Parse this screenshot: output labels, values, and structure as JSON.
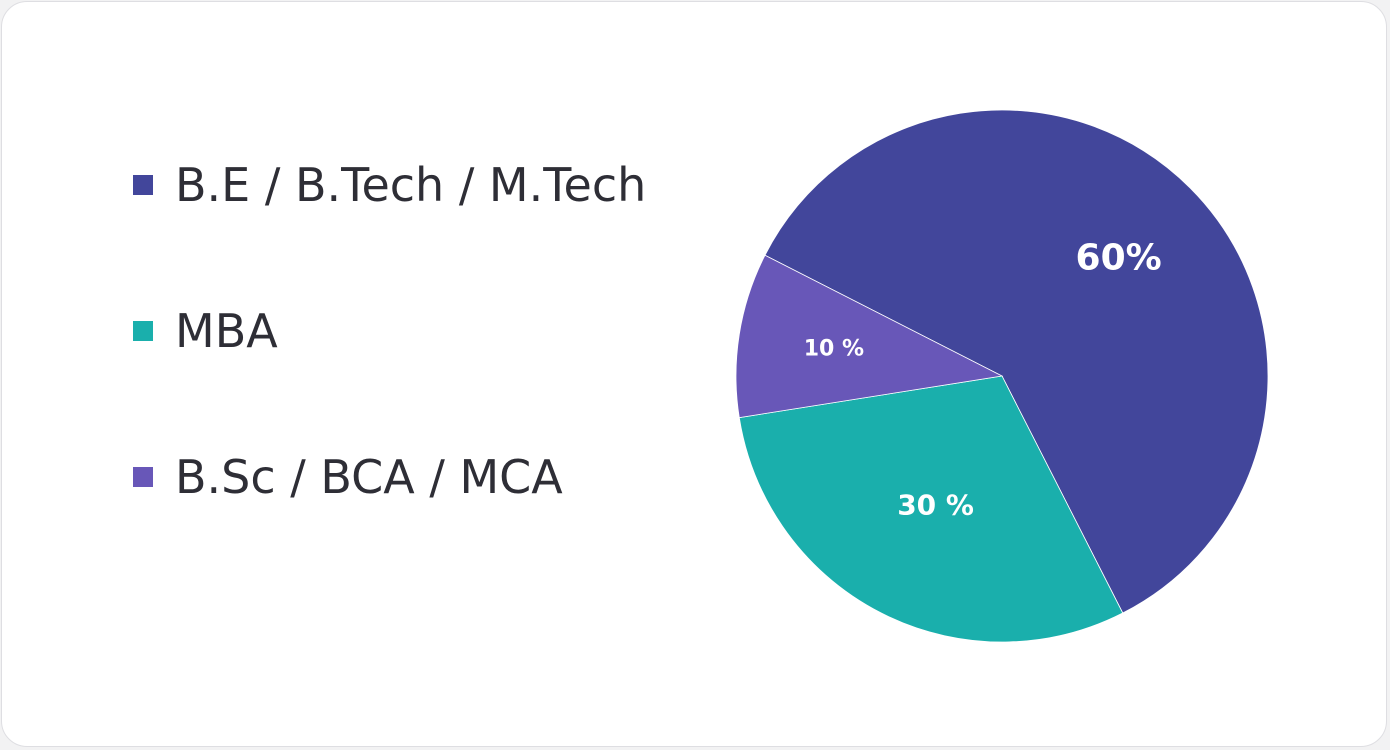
{
  "chart_data": {
    "type": "pie",
    "categories": [
      "B.E / B.Tech / M.Tech",
      "MBA",
      "B.Sc / BCA / MCA"
    ],
    "values": [
      60,
      30,
      10
    ],
    "data_labels": [
      "60%",
      "30 %",
      "10 %"
    ],
    "colors": [
      "#42469b",
      "#1aafac",
      "#6857b8"
    ],
    "title": "",
    "legend_position": "left"
  },
  "legend": {
    "items": [
      {
        "label": "B.E / B.Tech / M.Tech",
        "color": "#42469b"
      },
      {
        "label": "MBA",
        "color": "#1aafac"
      },
      {
        "label": "B.Sc / BCA / MCA",
        "color": "#6857b8"
      }
    ]
  }
}
